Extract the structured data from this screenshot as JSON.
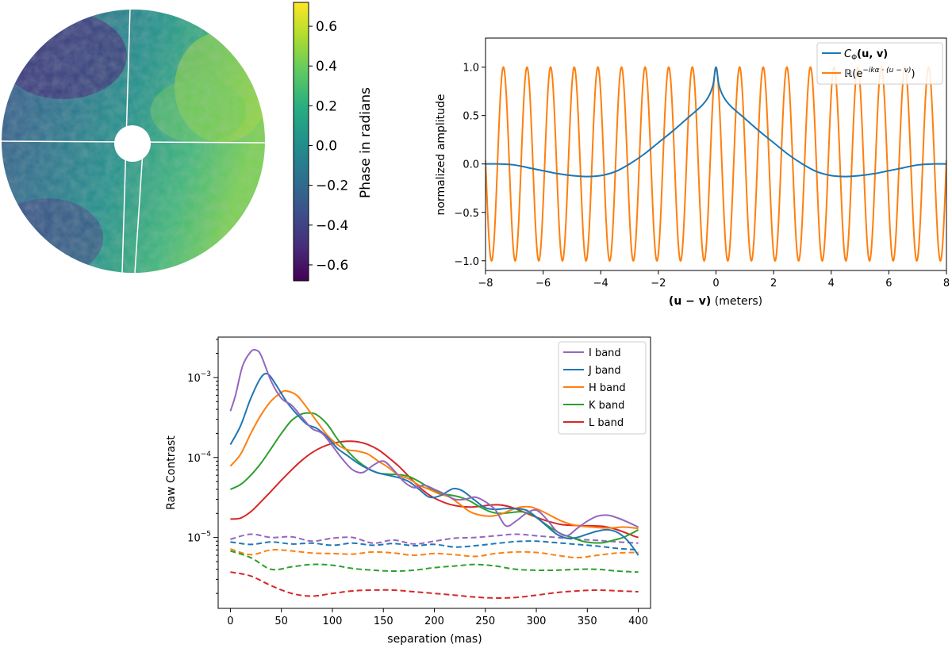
{
  "pupil_map": {
    "colorbar": {
      "label": "Phase in radians",
      "ticks": [
        0.6,
        0.4,
        0.2,
        0.0,
        -0.2,
        -0.4,
        -0.6
      ],
      "tick_labels": [
        "0.6",
        "0.4",
        "0.2",
        "0.0",
        "−0.2",
        "−0.4",
        "−0.6"
      ],
      "range": [
        -0.68,
        0.72
      ]
    }
  },
  "chart_data": [
    {
      "type": "line",
      "title": "",
      "xlabel_vec": "(u − v)",
      "xlabel_units": " (meters)",
      "ylabel": "normalized amplitude",
      "xlim": [
        -8,
        8
      ],
      "ylim": [
        -1.1,
        1.3
      ],
      "xticks": [
        -8,
        -6,
        -4,
        -2,
        0,
        2,
        4,
        6,
        8
      ],
      "xtick_labels": [
        "−8",
        "−6",
        "−4",
        "−2",
        "0",
        "2",
        "4",
        "6",
        "8"
      ],
      "yticks": [
        -1.0,
        -0.5,
        0.0,
        0.5,
        1.0
      ],
      "ytick_labels": [
        "−1.0",
        "−0.5",
        "0.0",
        "0.5",
        "1.0"
      ],
      "legend_position": "top-right",
      "series": [
        {
          "name": "C_Φ(u, v)",
          "legend": {
            "main": "C",
            "sub": "Φ",
            "rest": "(u, v)"
          },
          "color": "#1f77b4",
          "x": [
            -8,
            -7.5,
            -7,
            -6.5,
            -6,
            -5.5,
            -5,
            -4.5,
            -4,
            -3.5,
            -3,
            -2.5,
            -2,
            -1.5,
            -1,
            -0.5,
            -0.25,
            -0.1,
            0,
            0.1,
            0.25,
            0.5,
            1,
            1.5,
            2,
            2.5,
            3,
            3.5,
            4,
            4.5,
            5,
            5.5,
            6,
            6.5,
            7,
            7.5,
            8
          ],
          "y": [
            0.0,
            0.0,
            -0.01,
            -0.04,
            -0.07,
            -0.1,
            -0.12,
            -0.13,
            -0.12,
            -0.08,
            0.0,
            0.1,
            0.22,
            0.34,
            0.47,
            0.6,
            0.7,
            0.82,
            1.0,
            0.82,
            0.7,
            0.6,
            0.47,
            0.34,
            0.22,
            0.1,
            0.0,
            -0.08,
            -0.12,
            -0.13,
            -0.12,
            -0.1,
            -0.07,
            -0.04,
            -0.01,
            0.0,
            0.0
          ]
        },
        {
          "name": "ℝ(e^{−ikα·(u−v)})",
          "legend": {
            "main": "ℝ(e",
            "sup": "−ikα · (u − v)",
            "rest": ")"
          },
          "color": "#ff7f0e",
          "function": "cos(2π·x/0.82)",
          "period": 0.82,
          "amplitude": 1.0,
          "x_range": [
            -8,
            8
          ]
        }
      ]
    },
    {
      "type": "line",
      "title": "",
      "xlabel": "separation   (mas)",
      "ylabel": "Raw Contrast",
      "yscale": "log",
      "xlim": [
        -12,
        412
      ],
      "ylim": [
        1.3e-06,
        0.0032
      ],
      "xticks": [
        0,
        50,
        100,
        150,
        200,
        250,
        300,
        350,
        400
      ],
      "xtick_labels": [
        "0",
        "50",
        "100",
        "150",
        "200",
        "250",
        "300",
        "350",
        "400"
      ],
      "yticks": [
        1e-05,
        0.0001,
        0.001
      ],
      "ytick_labels": [
        {
          "base": "10",
          "exp": "−5"
        },
        {
          "base": "10",
          "exp": "−4"
        },
        {
          "base": "10",
          "exp": "−3"
        }
      ],
      "legend_position": "top-right",
      "series": [
        {
          "name": "I band",
          "color": "#9467bd",
          "style": "solid",
          "x": [
            0,
            5,
            12,
            20,
            25,
            30,
            40,
            50,
            60,
            70,
            80,
            90,
            100,
            110,
            120,
            130,
            140,
            150,
            160,
            170,
            180,
            190,
            200,
            210,
            220,
            230,
            240,
            250,
            260,
            270,
            280,
            290,
            300,
            310,
            320,
            330,
            340,
            350,
            360,
            370,
            380,
            390,
            400
          ],
          "y": [
            0.00038,
            0.0006,
            0.0014,
            0.0021,
            0.0022,
            0.0019,
            0.0009,
            0.00055,
            0.00045,
            0.00032,
            0.00023,
            0.0002,
            0.00014,
            9.5e-05,
            7e-05,
            6.5e-05,
            8e-05,
            9e-05,
            7e-05,
            5e-05,
            4.2e-05,
            4.5e-05,
            4e-05,
            3.5e-05,
            3e-05,
            3e-05,
            3.2e-05,
            2.8e-05,
            2.2e-05,
            1.4e-05,
            1.6e-05,
            2e-05,
            2.2e-05,
            1.7e-05,
            1.2e-05,
            1.05e-05,
            1.3e-05,
            1.6e-05,
            1.85e-05,
            1.9e-05,
            1.75e-05,
            1.55e-05,
            1.35e-05
          ]
        },
        {
          "name": "J band",
          "color": "#1f77b4",
          "style": "solid",
          "x": [
            0,
            10,
            20,
            30,
            37,
            45,
            55,
            65,
            75,
            85,
            95,
            105,
            115,
            125,
            135,
            145,
            155,
            165,
            175,
            185,
            195,
            205,
            215,
            220,
            228,
            240,
            250,
            260,
            270,
            280,
            290,
            300,
            310,
            320,
            330,
            340,
            350,
            360,
            370,
            380,
            390,
            400
          ],
          "y": [
            0.000145,
            0.00025,
            0.00055,
            0.001,
            0.0011,
            0.0008,
            0.0005,
            0.00035,
            0.00026,
            0.00023,
            0.00018,
            0.00013,
            0.000105,
            8.5e-05,
            7.2e-05,
            6.4e-05,
            6e-05,
            5.6e-05,
            5e-05,
            4e-05,
            3.2e-05,
            3.3e-05,
            3.9e-05,
            4.1e-05,
            3.8e-05,
            2.9e-05,
            2.35e-05,
            2.25e-05,
            2.3e-05,
            2.3e-05,
            2.2e-05,
            1.8e-05,
            1.4e-05,
            1.1e-05,
            9.8e-06,
            1e-05,
            1.1e-05,
            1.2e-05,
            1.25e-05,
            1.15e-05,
            9e-06,
            6e-06
          ]
        },
        {
          "name": "H band",
          "color": "#ff7f0e",
          "style": "solid",
          "x": [
            0,
            10,
            20,
            30,
            40,
            50,
            55,
            65,
            75,
            85,
            95,
            105,
            115,
            125,
            135,
            145,
            155,
            165,
            175,
            185,
            195,
            205,
            215,
            225,
            235,
            245,
            255,
            265,
            275,
            285,
            295,
            305,
            315,
            325,
            335,
            345,
            355,
            365,
            375,
            385,
            395,
            400
          ],
          "y": [
            7.8e-05,
            0.00011,
            0.0002,
            0.00034,
            0.00051,
            0.00065,
            0.00068,
            0.0006,
            0.00042,
            0.00028,
            0.00019,
            0.000145,
            0.000125,
            0.00012,
            0.00011,
            9e-05,
            7.5e-05,
            6e-05,
            5.4e-05,
            4.5e-05,
            4e-05,
            3.5e-05,
            3.2e-05,
            2.6e-05,
            2.1e-05,
            1.9e-05,
            1.85e-05,
            1.95e-05,
            2.2e-05,
            2.4e-05,
            2.4e-05,
            2.15e-05,
            1.85e-05,
            1.6e-05,
            1.45e-05,
            1.38e-05,
            1.35e-05,
            1.32e-05,
            1.32e-05,
            1.35e-05,
            1.32e-05,
            1.3e-05
          ]
        },
        {
          "name": "K band",
          "color": "#2ca02c",
          "style": "solid",
          "x": [
            0,
            10,
            20,
            30,
            40,
            50,
            60,
            70,
            78,
            85,
            95,
            105,
            115,
            125,
            135,
            145,
            155,
            165,
            175,
            185,
            195,
            205,
            215,
            225,
            235,
            245,
            255,
            265,
            275,
            285,
            295,
            305,
            315,
            325,
            335,
            345,
            355,
            365,
            375,
            385,
            395,
            400
          ],
          "y": [
            4e-05,
            4.6e-05,
            6e-05,
            8.5e-05,
            0.00013,
            0.0002,
            0.00029,
            0.00035,
            0.00036,
            0.00034,
            0.00026,
            0.00017,
            0.00012,
            9e-05,
            7.3e-05,
            6.4e-05,
            6.2e-05,
            6.1e-05,
            5.8e-05,
            5e-05,
            4.2e-05,
            3.6e-05,
            3.4e-05,
            3.2e-05,
            2.85e-05,
            2.4e-05,
            2.1e-05,
            2e-05,
            2.05e-05,
            2.1e-05,
            1.95e-05,
            1.6e-05,
            1.3e-05,
            1.1e-05,
            1e-05,
            9e-06,
            8.6e-06,
            8.6e-06,
            9.2e-06,
            1e-05,
            1.15e-05,
            1.25e-05
          ]
        },
        {
          "name": "L band",
          "color": "#d62728",
          "style": "solid",
          "x": [
            0,
            10,
            20,
            30,
            40,
            50,
            60,
            70,
            80,
            90,
            100,
            110,
            118,
            125,
            135,
            145,
            155,
            165,
            175,
            185,
            195,
            205,
            215,
            225,
            235,
            245,
            255,
            265,
            275,
            285,
            295,
            305,
            315,
            325,
            335,
            345,
            355,
            365,
            375,
            385,
            395,
            400
          ],
          "y": [
            1.7e-05,
            1.75e-05,
            2.1e-05,
            2.8e-05,
            3.8e-05,
            5.2e-05,
            7e-05,
            9.2e-05,
            0.000115,
            0.000135,
            0.00015,
            0.000158,
            0.00016,
            0.000157,
            0.000145,
            0.000125,
            0.0001,
            7.8e-05,
            5.8e-05,
            4.3e-05,
            3.4e-05,
            2.9e-05,
            2.6e-05,
            2.45e-05,
            2.4e-05,
            2.45e-05,
            2.55e-05,
            2.55e-05,
            2.4e-05,
            2.15e-05,
            1.9e-05,
            1.7e-05,
            1.55e-05,
            1.45e-05,
            1.42e-05,
            1.4e-05,
            1.4e-05,
            1.38e-05,
            1.3e-05,
            1.18e-05,
            1.05e-05,
            1e-05
          ]
        },
        {
          "name": "I band (dashed)",
          "color": "#9467bd",
          "style": "dashed",
          "x": [
            0,
            20,
            40,
            60,
            80,
            100,
            120,
            140,
            160,
            180,
            200,
            220,
            240,
            260,
            280,
            300,
            320,
            340,
            360,
            380,
            400
          ],
          "y": [
            9.5e-06,
            1.1e-05,
            1e-05,
            1.02e-05,
            9e-06,
            9.8e-06,
            1e-05,
            8.5e-06,
            9.3e-06,
            8.3e-06,
            9e-06,
            9.8e-06,
            1e-05,
            1.05e-05,
            1.1e-05,
            1.05e-05,
            1e-05,
            9.5e-06,
            9.2e-06,
            8.8e-06,
            8.5e-06
          ]
        },
        {
          "name": "J band (dashed)",
          "color": "#1f77b4",
          "style": "dashed",
          "x": [
            0,
            20,
            40,
            60,
            80,
            100,
            120,
            140,
            160,
            180,
            200,
            220,
            240,
            260,
            280,
            300,
            320,
            340,
            360,
            380,
            400
          ],
          "y": [
            8.8e-06,
            8.2e-06,
            8.8e-06,
            8.3e-06,
            8.5e-06,
            8e-06,
            8.5e-06,
            8e-06,
            8.4e-06,
            7.9e-06,
            8.2e-06,
            7.6e-06,
            7.9e-06,
            8.4e-06,
            8.9e-06,
            9e-06,
            8.6e-06,
            8.2e-06,
            7.8e-06,
            7.3e-06,
            7e-06
          ]
        },
        {
          "name": "H band (dashed)",
          "color": "#ff7f0e",
          "style": "dashed",
          "x": [
            0,
            20,
            40,
            60,
            80,
            100,
            120,
            140,
            160,
            180,
            200,
            220,
            240,
            260,
            280,
            300,
            320,
            340,
            360,
            380,
            400
          ],
          "y": [
            7.2e-06,
            6.1e-06,
            7e-06,
            6.8e-06,
            6.4e-06,
            6.3e-06,
            6.2e-06,
            6.6e-06,
            6.4e-06,
            6e-06,
            6.3e-06,
            6.1e-06,
            5.8e-06,
            6.3e-06,
            6.6e-06,
            6.5e-06,
            6e-06,
            5.6e-06,
            6e-06,
            6.4e-06,
            6.5e-06
          ]
        },
        {
          "name": "K band (dashed)",
          "color": "#2ca02c",
          "style": "dashed",
          "x": [
            0,
            20,
            40,
            60,
            80,
            100,
            120,
            140,
            160,
            180,
            200,
            220,
            240,
            260,
            280,
            300,
            320,
            340,
            360,
            380,
            400
          ],
          "y": [
            6.8e-06,
            5.6e-06,
            4e-06,
            4.3e-06,
            4.6e-06,
            4.5e-06,
            4.1e-06,
            3.9e-06,
            3.8e-06,
            3.9e-06,
            4.2e-06,
            4.4e-06,
            4.6e-06,
            4.4e-06,
            4e-06,
            3.9e-06,
            3.9e-06,
            4e-06,
            4e-06,
            3.8e-06,
            3.7e-06
          ]
        },
        {
          "name": "L band (dashed)",
          "color": "#d62728",
          "style": "dashed",
          "x": [
            0,
            20,
            40,
            60,
            80,
            100,
            120,
            140,
            160,
            180,
            200,
            220,
            240,
            260,
            280,
            300,
            320,
            340,
            360,
            380,
            400
          ],
          "y": [
            3.7e-06,
            3.3e-06,
            2.5e-06,
            2e-06,
            1.85e-06,
            2e-06,
            2.15e-06,
            2.2e-06,
            2.2e-06,
            2.1e-06,
            2e-06,
            1.9e-06,
            1.8e-06,
            1.75e-06,
            1.78e-06,
            1.9e-06,
            2.05e-06,
            2.15e-06,
            2.2e-06,
            2.15e-06,
            2.1e-06
          ]
        }
      ]
    }
  ]
}
